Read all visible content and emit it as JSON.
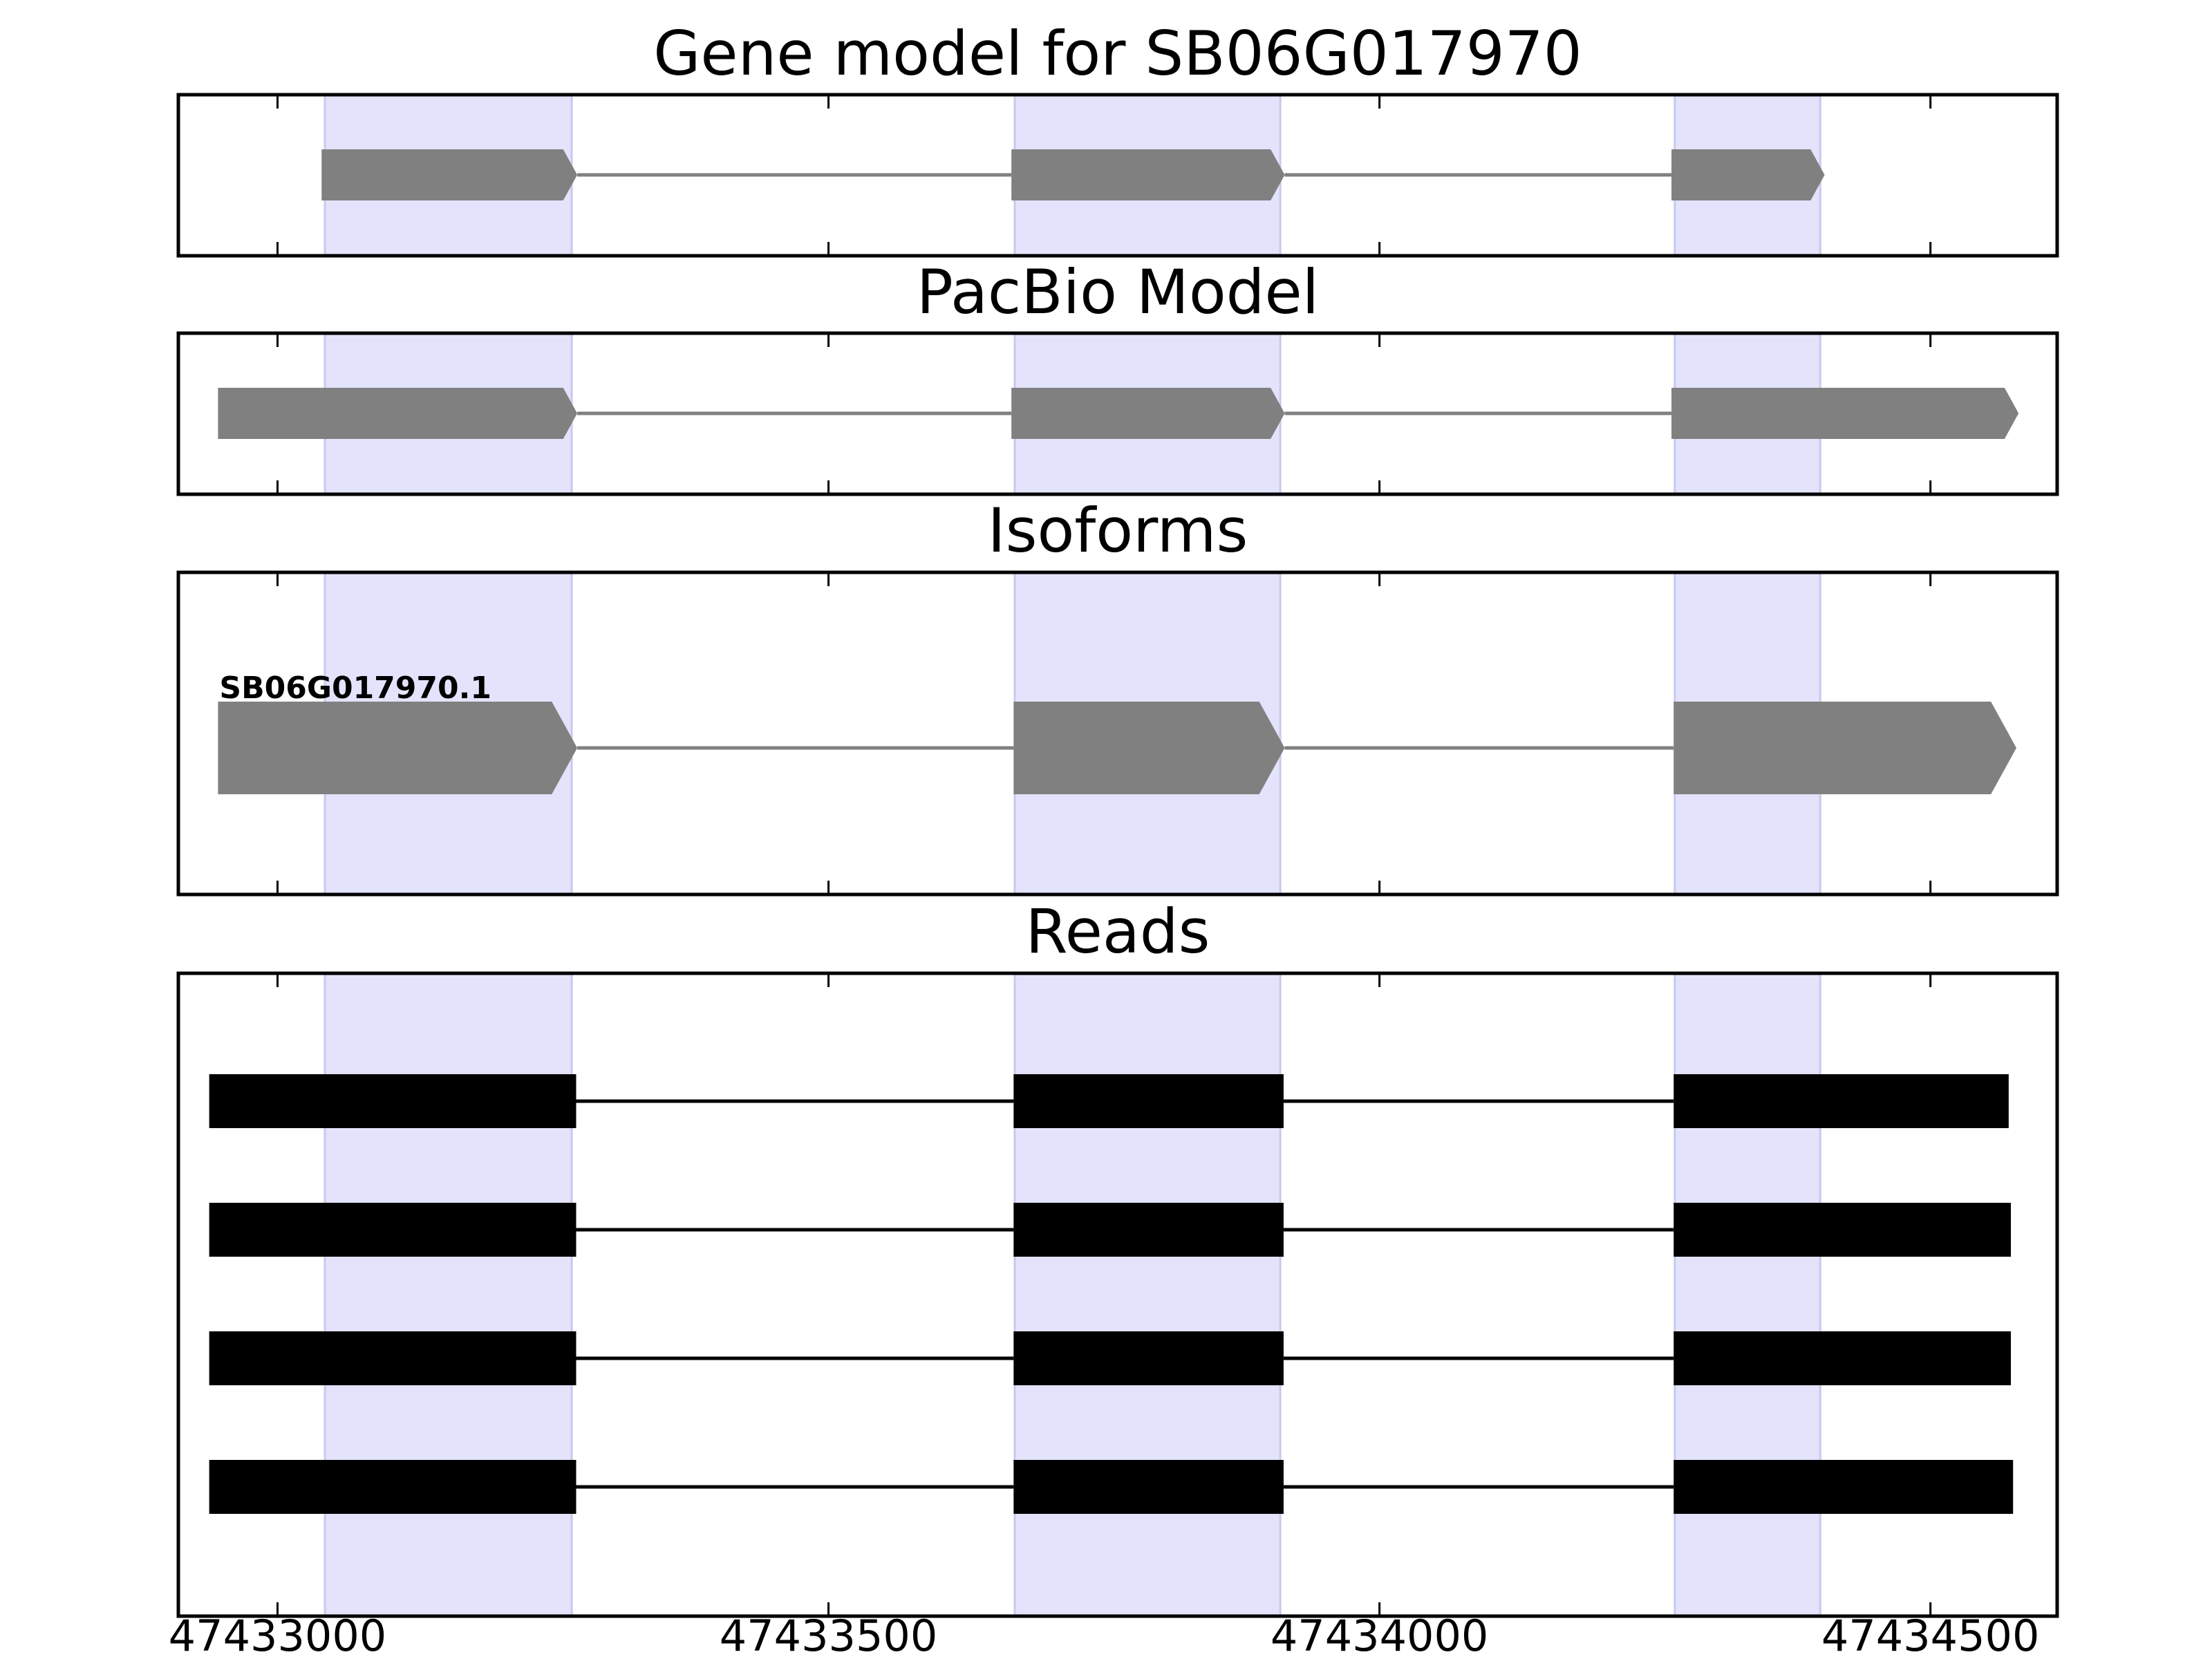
{
  "colors": {
    "exon_band": "#e3e3fc",
    "exon_band_edge": "#c9c9ee",
    "gene_feature": "#808080",
    "read_feature": "#000000",
    "frame": "#000000"
  },
  "chart_data": {
    "type": "gene_structure",
    "xlim": [
      47432910,
      47434615
    ],
    "xticks": [
      47433000,
      47433500,
      47434000,
      47434500
    ],
    "tick_labels": [
      "47433000",
      "47433500",
      "47434000",
      "47434500"
    ],
    "highlight_regions": [
      [
        47433043,
        47433267
      ],
      [
        47433669,
        47433910
      ],
      [
        47434268,
        47434400
      ]
    ],
    "panels": [
      {
        "id": "gene-model",
        "title": "Gene model for SB06G017970",
        "style": "arrow",
        "tracks": [
          {
            "label": "",
            "exons": [
              [
                47433040,
                47433272
              ],
              [
                47433666,
                47433914
              ],
              [
                47434265,
                47434404
              ]
            ]
          }
        ]
      },
      {
        "id": "pacbio-model",
        "title": "PacBio Model",
        "style": "arrow",
        "tracks": [
          {
            "label": "",
            "exons": [
              [
                47432946,
                47433272
              ],
              [
                47433666,
                47433914
              ],
              [
                47434265,
                47434580
              ]
            ]
          }
        ]
      },
      {
        "id": "isoforms",
        "title": "Isoforms",
        "style": "arrow",
        "tracks": [
          {
            "label": "SB06G017970.1",
            "exons": [
              [
                47432946,
                47433272
              ],
              [
                47433668,
                47433914
              ],
              [
                47434267,
                47434578
              ]
            ]
          }
        ]
      },
      {
        "id": "reads",
        "title": "Reads",
        "style": "block",
        "tracks": [
          {
            "label": "",
            "exons": [
              [
                47432938,
                47433271
              ],
              [
                47433668,
                47433913
              ],
              [
                47434267,
                47434571
              ]
            ]
          },
          {
            "label": "",
            "exons": [
              [
                47432938,
                47433271
              ],
              [
                47433668,
                47433913
              ],
              [
                47434267,
                47434573
              ]
            ]
          },
          {
            "label": "",
            "exons": [
              [
                47432938,
                47433271
              ],
              [
                47433668,
                47433913
              ],
              [
                47434267,
                47434573
              ]
            ]
          },
          {
            "label": "",
            "exons": [
              [
                47432938,
                47433271
              ],
              [
                47433668,
                47433913
              ],
              [
                47434267,
                47434575
              ]
            ]
          }
        ]
      }
    ]
  }
}
